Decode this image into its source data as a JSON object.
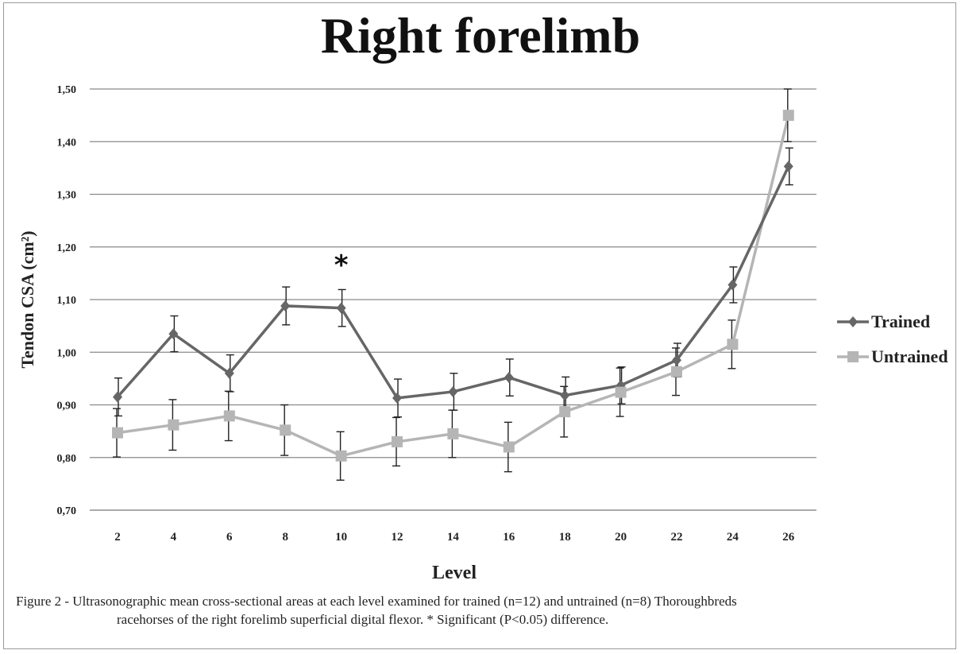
{
  "chart_data": {
    "type": "line",
    "title": "Right forelimb",
    "xlabel": "Level",
    "ylabel": "Tendon CSA (cm²)",
    "categories": [
      "2",
      "4",
      "6",
      "8",
      "10",
      "12",
      "14",
      "16",
      "18",
      "20",
      "22",
      "24",
      "26"
    ],
    "ylim": [
      0.7,
      1.5
    ],
    "yticks": [
      "0,70",
      "0,80",
      "0,90",
      "1,00",
      "1,10",
      "1,20",
      "1,30",
      "1,40",
      "1,50"
    ],
    "grid": true,
    "legend_position": "right",
    "series": [
      {
        "name": "Trained",
        "color": "#666666",
        "marker": "diamond",
        "values": [
          0.915,
          1.035,
          0.96,
          1.088,
          1.084,
          0.913,
          0.925,
          0.952,
          0.918,
          0.937,
          0.985,
          1.128,
          1.353
        ],
        "errors": [
          0.036,
          0.034,
          0.035,
          0.036,
          0.035,
          0.036,
          0.035,
          0.035,
          0.035,
          0.035,
          0.032,
          0.034,
          0.035
        ]
      },
      {
        "name": "Untrained",
        "color": "#b5b5b5",
        "marker": "square",
        "values": [
          0.847,
          0.862,
          0.879,
          0.852,
          0.803,
          0.83,
          0.845,
          0.82,
          0.887,
          0.924,
          0.963,
          1.015,
          1.45
        ],
        "errors": [
          0.046,
          0.048,
          0.047,
          0.048,
          0.046,
          0.046,
          0.045,
          0.047,
          0.048,
          0.046,
          0.045,
          0.046,
          0.05
        ]
      }
    ],
    "annotations": [
      {
        "text": "*",
        "category": "10"
      }
    ]
  },
  "caption": {
    "line1": "Figure 2 - Ultrasonographic mean cross-sectional areas at each level examined for trained (n=12) and untrained (n=8) Thoroughbreds",
    "line2": "racehorses of the right forelimb superficial digital flexor. * Significant (P<0.05) difference."
  }
}
